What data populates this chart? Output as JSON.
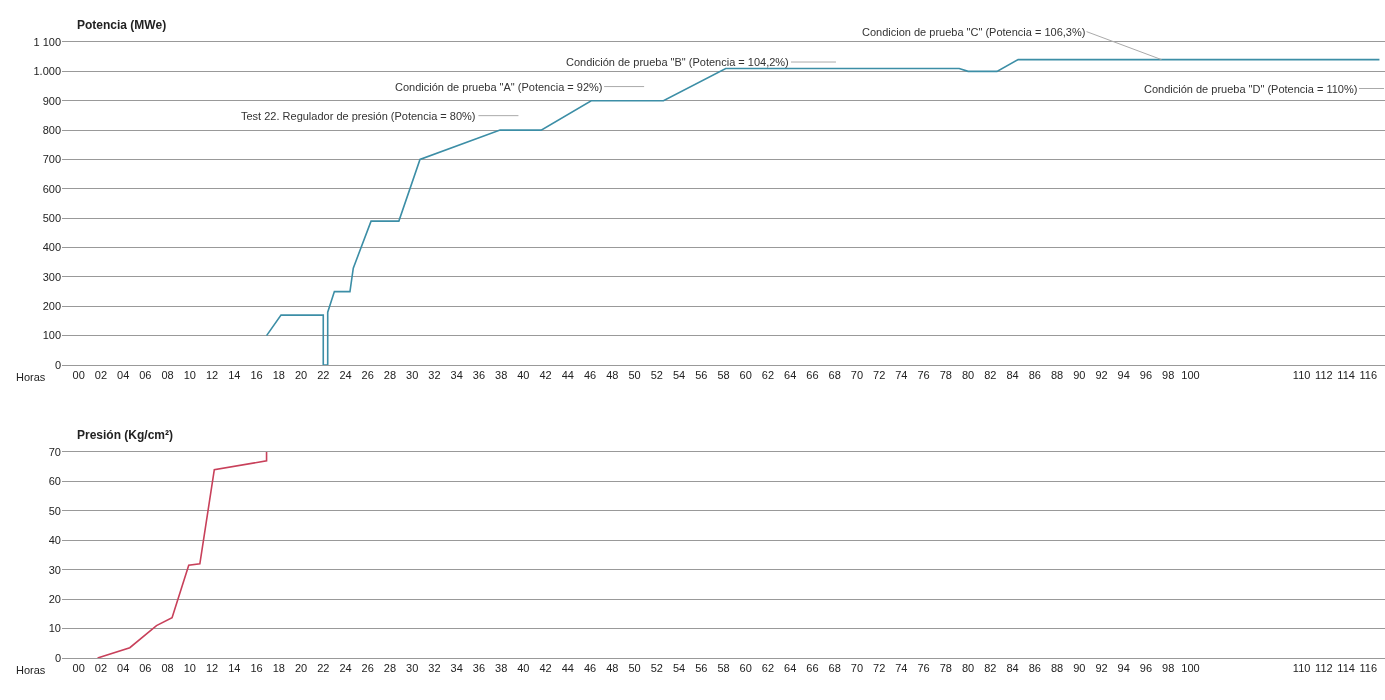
{
  "chart_data": [
    {
      "type": "line",
      "ylabel": "Potencia (MWe)",
      "xlabel": "Horas",
      "grid": "y",
      "x": [
        16.9,
        18.2,
        22.0,
        22.0,
        22.4,
        22.4,
        23.0,
        24.4,
        24.7,
        26.3,
        28.8,
        30.7,
        37.9,
        41.6,
        46.1,
        52.6,
        58.2,
        79.2,
        80.0,
        82.6,
        84.5,
        117
      ],
      "series": [
        {
          "color": "#3c8ea6",
          "values": [
            100,
            170,
            170,
            0,
            0,
            180,
            250,
            250,
            330,
            490,
            490,
            700,
            800,
            800,
            900,
            900,
            1010,
            1010,
            1000,
            1000,
            1040,
            1040
          ]
        }
      ],
      "xlim": [
        -1.5,
        117.5
      ],
      "ylim": [
        0,
        1100
      ],
      "yticks": [
        0,
        100,
        200,
        300,
        400,
        500,
        600,
        700,
        800,
        900,
        {
          "value": 1000,
          "label": "1.000"
        },
        {
          "value": 1100,
          "label": "1 100"
        }
      ],
      "xticks": [
        {
          "value": 0,
          "label": "00"
        },
        {
          "value": 2,
          "label": "02"
        },
        {
          "value": 4,
          "label": "04"
        },
        {
          "value": 6,
          "label": "06"
        },
        {
          "value": 8,
          "label": "08"
        },
        {
          "value": 10,
          "label": "10"
        },
        {
          "value": 12,
          "label": "12"
        },
        {
          "value": 14,
          "label": "14"
        },
        {
          "value": 16,
          "label": "16"
        },
        {
          "value": 18,
          "label": "18"
        },
        {
          "value": 20,
          "label": "20"
        },
        {
          "value": 22,
          "label": "22"
        },
        {
          "value": 24,
          "label": "24"
        },
        {
          "value": 26,
          "label": "26"
        },
        {
          "value": 28,
          "label": "28"
        },
        {
          "value": 30,
          "label": "30"
        },
        {
          "value": 32,
          "label": "32"
        },
        {
          "value": 34,
          "label": "34"
        },
        {
          "value": 36,
          "label": "36"
        },
        {
          "value": 38,
          "label": "38"
        },
        {
          "value": 40,
          "label": "40"
        },
        {
          "value": 42,
          "label": "42"
        },
        {
          "value": 44,
          "label": "44"
        },
        {
          "value": 46,
          "label": "46"
        },
        {
          "value": 48,
          "label": "48"
        },
        {
          "value": 50,
          "label": "50"
        },
        {
          "value": 52,
          "label": "52"
        },
        {
          "value": 54,
          "label": "54"
        },
        {
          "value": 56,
          "label": "56"
        },
        {
          "value": 58,
          "label": "58"
        },
        {
          "value": 60,
          "label": "60"
        },
        {
          "value": 62,
          "label": "62"
        },
        {
          "value": 64,
          "label": "64"
        },
        {
          "value": 66,
          "label": "66"
        },
        {
          "value": 68,
          "label": "68"
        },
        {
          "value": 70,
          "label": "70"
        },
        {
          "value": 72,
          "label": "72"
        },
        {
          "value": 74,
          "label": "74"
        },
        {
          "value": 76,
          "label": "76"
        },
        {
          "value": 78,
          "label": "78"
        },
        {
          "value": 80,
          "label": "80"
        },
        {
          "value": 82,
          "label": "82"
        },
        {
          "value": 84,
          "label": "84"
        },
        {
          "value": 86,
          "label": "86"
        },
        {
          "value": 88,
          "label": "88"
        },
        {
          "value": 90,
          "label": "90"
        },
        {
          "value": 92,
          "label": "92"
        },
        {
          "value": 94,
          "label": "94"
        },
        {
          "value": 96,
          "label": "96"
        },
        {
          "value": 98,
          "label": "98"
        },
        {
          "value": 100,
          "label": "100"
        },
        {
          "value": 110,
          "label": "110"
        },
        {
          "value": 112,
          "label": "112"
        },
        {
          "value": 114,
          "label": "114"
        },
        {
          "value": 116,
          "label": "116"
        }
      ],
      "annotations": [
        "Test 22. Regulador de presión (Potencia = 80%)",
        "Condición de prueba \"A\" (Potencia = 92%)",
        "Condición de prueba \"B\" (Potencia = 104,2%)",
        {
          "text": "Condicion de prueba \"C\" (Potencia = 106,3%)",
          "x": 97.4,
          "y": 1040
        },
        "Condición de prueba \"D\" (Potencia = 110%)"
      ]
    },
    {
      "type": "line",
      "ylabel": "Presión (Kg/cm²)",
      "xlabel": "Horas",
      "grid": "y",
      "x": [
        1.7,
        4.6,
        7.0,
        8.4,
        9.9,
        10.9,
        12.2,
        16.9,
        16.9
      ],
      "series": [
        {
          "color": "#c8405a",
          "values": [
            0,
            3.5,
            11,
            13.7,
            31.5,
            32,
            64,
            67,
            70
          ]
        }
      ],
      "xlim": [
        -1.5,
        117.5
      ],
      "ylim": [
        0,
        70
      ],
      "yticks": [
        0,
        10,
        20,
        30,
        40,
        50,
        60,
        70
      ],
      "xticks": [
        {
          "value": 0,
          "label": "00"
        },
        {
          "value": 2,
          "label": "02"
        },
        {
          "value": 4,
          "label": "04"
        },
        {
          "value": 6,
          "label": "06"
        },
        {
          "value": 8,
          "label": "08"
        },
        {
          "value": 10,
          "label": "10"
        },
        {
          "value": 12,
          "label": "12"
        },
        {
          "value": 14,
          "label": "14"
        },
        {
          "value": 16,
          "label": "16"
        },
        {
          "value": 18,
          "label": "18"
        },
        {
          "value": 20,
          "label": "20"
        },
        {
          "value": 22,
          "label": "22"
        },
        {
          "value": 24,
          "label": "24"
        },
        {
          "value": 26,
          "label": "26"
        },
        {
          "value": 28,
          "label": "28"
        },
        {
          "value": 30,
          "label": "30"
        },
        {
          "value": 32,
          "label": "32"
        },
        {
          "value": 34,
          "label": "34"
        },
        {
          "value": 36,
          "label": "36"
        },
        {
          "value": 38,
          "label": "38"
        },
        {
          "value": 40,
          "label": "40"
        },
        {
          "value": 42,
          "label": "42"
        },
        {
          "value": 44,
          "label": "44"
        },
        {
          "value": 46,
          "label": "46"
        },
        {
          "value": 48,
          "label": "48"
        },
        {
          "value": 50,
          "label": "50"
        },
        {
          "value": 52,
          "label": "52"
        },
        {
          "value": 54,
          "label": "54"
        },
        {
          "value": 56,
          "label": "56"
        },
        {
          "value": 58,
          "label": "58"
        },
        {
          "value": 60,
          "label": "60"
        },
        {
          "value": 62,
          "label": "62"
        },
        {
          "value": 64,
          "label": "64"
        },
        {
          "value": 66,
          "label": "66"
        },
        {
          "value": 68,
          "label": "68"
        },
        {
          "value": 70,
          "label": "70"
        },
        {
          "value": 72,
          "label": "72"
        },
        {
          "value": 74,
          "label": "74"
        },
        {
          "value": 76,
          "label": "76"
        },
        {
          "value": 78,
          "label": "78"
        },
        {
          "value": 80,
          "label": "80"
        },
        {
          "value": 82,
          "label": "82"
        },
        {
          "value": 84,
          "label": "84"
        },
        {
          "value": 86,
          "label": "86"
        },
        {
          "value": 88,
          "label": "88"
        },
        {
          "value": 90,
          "label": "90"
        },
        {
          "value": 92,
          "label": "92"
        },
        {
          "value": 94,
          "label": "94"
        },
        {
          "value": 96,
          "label": "96"
        },
        {
          "value": 98,
          "label": "98"
        },
        {
          "value": 100,
          "label": "100"
        },
        {
          "value": 110,
          "label": "110"
        },
        {
          "value": 112,
          "label": "112"
        },
        {
          "value": 114,
          "label": "114"
        },
        {
          "value": 116,
          "label": "116"
        }
      ]
    }
  ]
}
